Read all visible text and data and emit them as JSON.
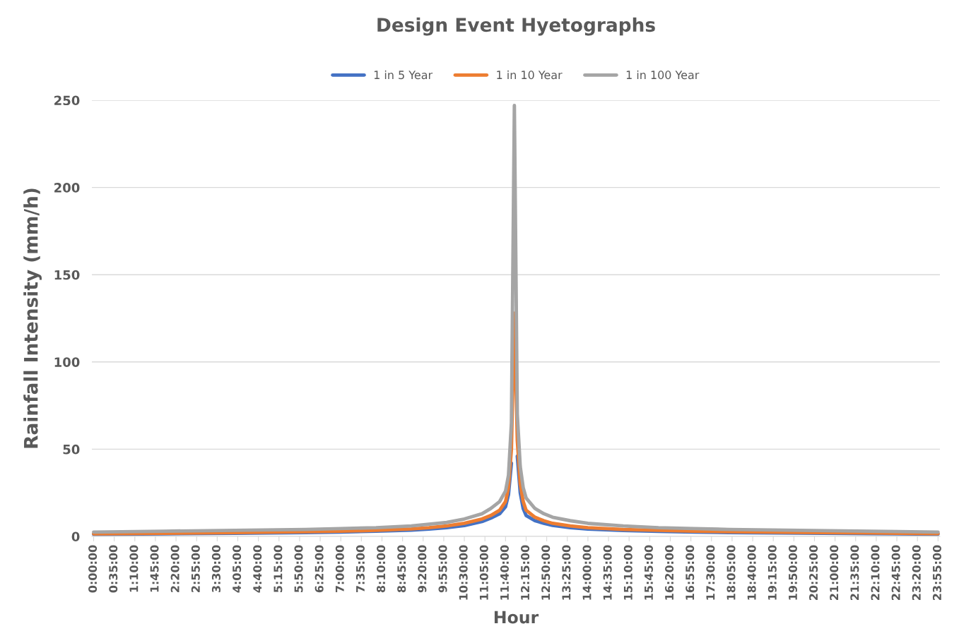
{
  "chart_data": {
    "type": "line",
    "title": "Design Event Hyetographs",
    "xlabel": "Hour",
    "ylabel": "Rainfall Intensity (mm/h)",
    "ylim": [
      0,
      250
    ],
    "yticks": [
      0,
      50,
      100,
      150,
      200,
      250
    ],
    "xlim": [
      -0.05,
      23.97
    ],
    "xticks": [
      {
        "value": 0,
        "label": "0:00:00"
      },
      {
        "value": 0.5833,
        "label": "0:35:00"
      },
      {
        "value": 1.1667,
        "label": "1:10:00"
      },
      {
        "value": 1.75,
        "label": "1:45:00"
      },
      {
        "value": 2.3333,
        "label": "2:20:00"
      },
      {
        "value": 2.9167,
        "label": "2:55:00"
      },
      {
        "value": 3.5,
        "label": "3:30:00"
      },
      {
        "value": 4.0833,
        "label": "4:05:00"
      },
      {
        "value": 4.6667,
        "label": "4:40:00"
      },
      {
        "value": 5.25,
        "label": "5:15:00"
      },
      {
        "value": 5.8333,
        "label": "5:50:00"
      },
      {
        "value": 6.4167,
        "label": "6:25:00"
      },
      {
        "value": 7,
        "label": "7:00:00"
      },
      {
        "value": 7.5833,
        "label": "7:35:00"
      },
      {
        "value": 8.1667,
        "label": "8:10:00"
      },
      {
        "value": 8.75,
        "label": "8:45:00"
      },
      {
        "value": 9.3333,
        "label": "9:20:00"
      },
      {
        "value": 9.9167,
        "label": "9:55:00"
      },
      {
        "value": 10.5,
        "label": "10:30:00"
      },
      {
        "value": 11.0833,
        "label": "11:05:00"
      },
      {
        "value": 11.6667,
        "label": "11:40:00"
      },
      {
        "value": 12.25,
        "label": "12:15:00"
      },
      {
        "value": 12.8333,
        "label": "12:50:00"
      },
      {
        "value": 13.4167,
        "label": "13:25:00"
      },
      {
        "value": 14,
        "label": "14:00:00"
      },
      {
        "value": 14.5833,
        "label": "14:35:00"
      },
      {
        "value": 15.1667,
        "label": "15:10:00"
      },
      {
        "value": 15.75,
        "label": "15:45:00"
      },
      {
        "value": 16.3333,
        "label": "16:20:00"
      },
      {
        "value": 16.9167,
        "label": "16:55:00"
      },
      {
        "value": 17.5,
        "label": "17:30:00"
      },
      {
        "value": 18.0833,
        "label": "18:05:00"
      },
      {
        "value": 18.6667,
        "label": "18:40:00"
      },
      {
        "value": 19.25,
        "label": "19:15:00"
      },
      {
        "value": 19.8333,
        "label": "19:50:00"
      },
      {
        "value": 20.4167,
        "label": "20:25:00"
      },
      {
        "value": 21,
        "label": "21:00:00"
      },
      {
        "value": 21.5833,
        "label": "21:35:00"
      },
      {
        "value": 22.1667,
        "label": "22:10:00"
      },
      {
        "value": 22.75,
        "label": "22:45:00"
      },
      {
        "value": 23.3333,
        "label": "23:20:00"
      },
      {
        "value": 23.9167,
        "label": "23:55:00"
      }
    ],
    "x": [
      0,
      2,
      4,
      6,
      7,
      8,
      9,
      9.5,
      10,
      10.5,
      11,
      11.25,
      11.5,
      11.6667,
      11.75,
      11.8333,
      11.9167,
      12,
      12.0833,
      12.1667,
      12.25,
      12.5,
      12.75,
      13,
      13.5,
      14,
      15,
      16,
      17,
      18,
      20,
      22,
      23.9167
    ],
    "grid": "y",
    "legend": "top",
    "marker": "none",
    "line_style": "solid",
    "series": [
      {
        "name": "1 in 5 Year",
        "color": "#4472c4",
        "values": [
          1.2,
          1.5,
          1.8,
          2.2,
          2.5,
          3,
          3.6,
          4.2,
          5,
          6.2,
          8.5,
          10.5,
          13,
          17,
          24,
          42,
          null,
          46,
          25,
          16,
          12,
          9,
          7.5,
          6.3,
          5,
          4.2,
          3.4,
          2.9,
          2.5,
          2.2,
          1.9,
          1.6,
          1.3
        ]
      },
      {
        "name": "1 in 10 Year",
        "color": "#ed7d31",
        "values": [
          1.5,
          1.8,
          2.2,
          2.7,
          3,
          3.5,
          4.3,
          5,
          6,
          7.5,
          10,
          12,
          15,
          20,
          28,
          50,
          128,
          55,
          30,
          20,
          15,
          11,
          9,
          7.5,
          6,
          5,
          4,
          3.5,
          3,
          2.7,
          2.3,
          2,
          1.6
        ]
      },
      {
        "name": "1 in 100 Year",
        "color": "#a5a5a5",
        "values": [
          2.5,
          3,
          3.5,
          4,
          4.5,
          5,
          6,
          7,
          8,
          10,
          13,
          16,
          20,
          26,
          35,
          65,
          247,
          70,
          40,
          28,
          22,
          16,
          13,
          11,
          9,
          7.5,
          6,
          5,
          4.5,
          4,
          3.5,
          3,
          2.5
        ]
      }
    ]
  }
}
